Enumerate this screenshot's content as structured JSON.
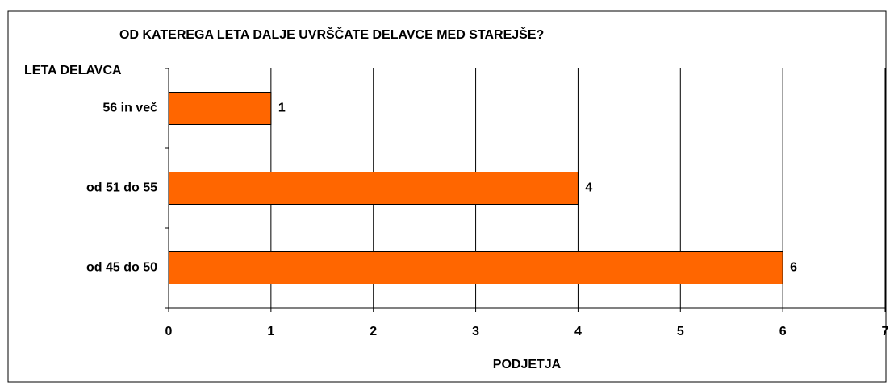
{
  "chart_data": {
    "type": "bar",
    "orientation": "horizontal",
    "title": "OD KATEREGA LETA DALJE UVRŠČATE DELAVCE MED STAREJŠE?",
    "y_label": "LETA DELAVCA",
    "x_label": "PODJETJA",
    "categories": [
      "56 in več",
      "od 51 do 55",
      "od 45 do 50"
    ],
    "values": [
      1,
      4,
      6
    ],
    "color": "#ff6600",
    "xlim": [
      0,
      7
    ],
    "xticks": [
      0,
      1,
      2,
      3,
      4,
      5,
      6,
      7
    ],
    "grid": true
  }
}
